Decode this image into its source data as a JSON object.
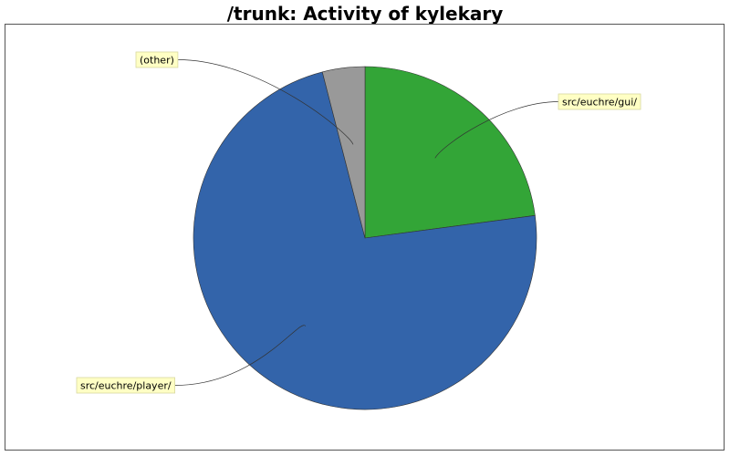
{
  "chart_data": {
    "type": "pie",
    "title": "/trunk: Activity of kylekary",
    "slices": [
      {
        "label": "src/euchre/gui/",
        "value": 22.9,
        "color": "#33a537"
      },
      {
        "label": "src/euchre/player/",
        "value": 73.1,
        "color": "#3364aa"
      },
      {
        "label": "(other)",
        "value": 4.0,
        "color": "#999999"
      }
    ],
    "start_angle_deg": 0,
    "direction": "clockwise",
    "label_style": "callout boxes with leader lines",
    "label_box_color": "#ffffc4",
    "legend": "none"
  }
}
